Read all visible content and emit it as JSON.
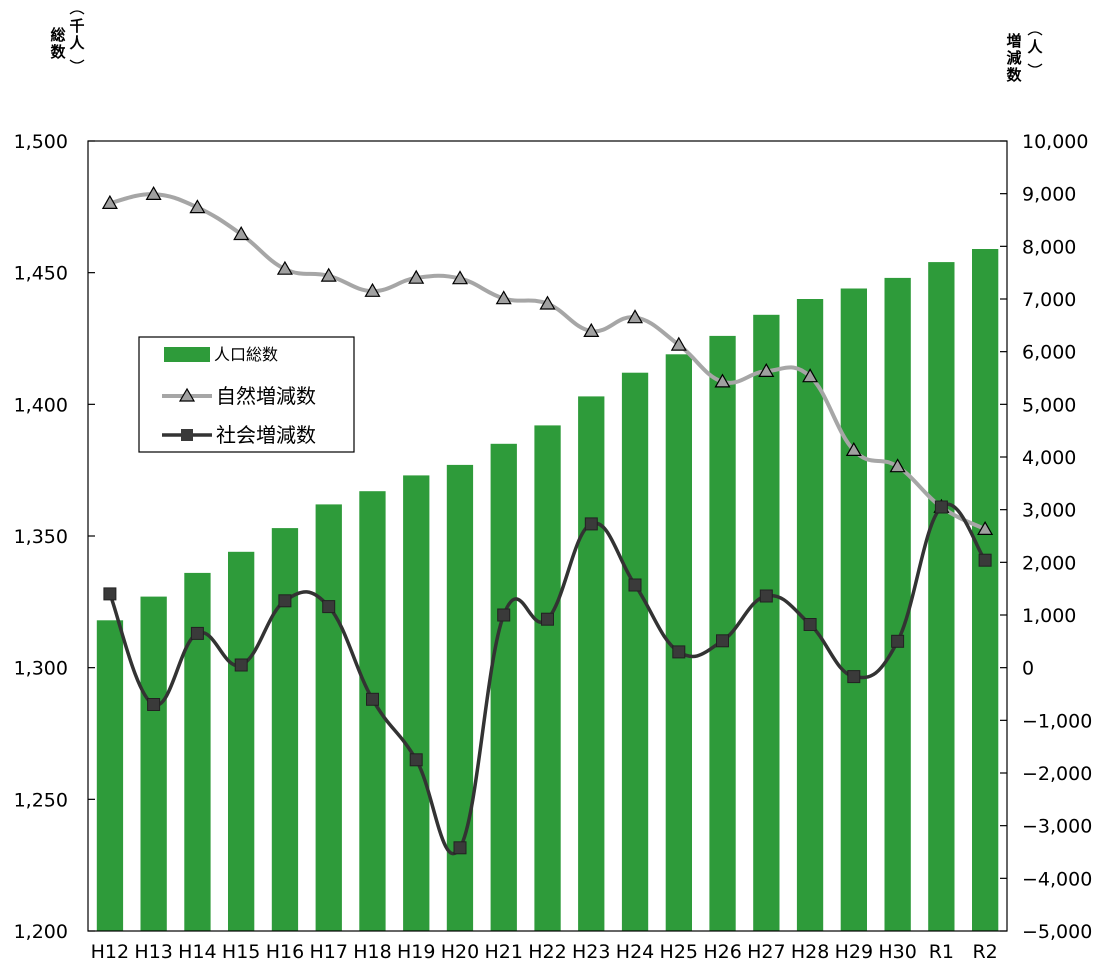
{
  "chart_data": {
    "type": "bar",
    "categories": [
      "H12",
      "H13",
      "H14",
      "H15",
      "H16",
      "H17",
      "H18",
      "H19",
      "H20",
      "H21",
      "H22",
      "H23",
      "H24",
      "H25",
      "H26",
      "H27",
      "H28",
      "H29",
      "H30",
      "R1",
      "R2"
    ],
    "left_axis": {
      "label_chars": [
        "総",
        "数"
      ],
      "unit_chars": [
        "千",
        "人"
      ],
      "ylim": [
        1200,
        1500
      ],
      "ticks": [
        "1,200",
        "1,250",
        "1,300",
        "1,350",
        "1,400",
        "1,450",
        "1,500"
      ],
      "tick_values": [
        1200,
        1250,
        1300,
        1350,
        1400,
        1450,
        1500
      ]
    },
    "right_axis": {
      "label_chars": [
        "増",
        "減",
        "数"
      ],
      "unit_chars": [
        "人"
      ],
      "ylim": [
        -5000,
        10000
      ],
      "ticks": [
        "−5,000",
        "−4,000",
        "−3,000",
        "−2,000",
        "−1,000",
        "0",
        "1,000",
        "2,000",
        "3,000",
        "4,000",
        "5,000",
        "6,000",
        "7,000",
        "8,000",
        "9,000",
        "10,000"
      ],
      "tick_values": [
        -5000,
        -4000,
        -3000,
        -2000,
        -1000,
        0,
        1000,
        2000,
        3000,
        4000,
        5000,
        6000,
        7000,
        8000,
        9000,
        10000
      ]
    },
    "series": [
      {
        "name": "人口総数",
        "type": "bar",
        "axis": "left",
        "color": "#2e9b3a",
        "values": [
          1318,
          1327,
          1336,
          1344,
          1353,
          1362,
          1367,
          1373,
          1377,
          1385,
          1392,
          1403,
          1412,
          1419,
          1426,
          1434,
          1440,
          1444,
          1448,
          1454,
          1459
        ]
      },
      {
        "name": "自然増減数",
        "type": "line",
        "axis": "right",
        "marker": "triangle",
        "color": "#a6a6a6",
        "values": [
          8820,
          8990,
          8740,
          8230,
          7570,
          7440,
          7150,
          7400,
          7390,
          7010,
          6910,
          6390,
          6650,
          6130,
          5430,
          5630,
          5530,
          4130,
          3820,
          3050,
          2630
        ]
      },
      {
        "name": "社会増減数",
        "type": "line",
        "axis": "right",
        "marker": "square",
        "color": "#333333",
        "values": [
          1400,
          -700,
          650,
          50,
          1270,
          1160,
          -600,
          -1750,
          -3420,
          1000,
          920,
          2730,
          1570,
          300,
          510,
          1360,
          820,
          -170,
          500,
          3050,
          2040
        ]
      }
    ],
    "legend_position": "left-middle",
    "grid": false
  }
}
